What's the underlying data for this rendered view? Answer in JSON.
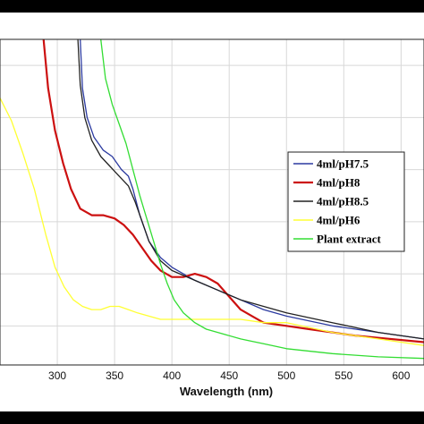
{
  "chart_data": {
    "type": "line",
    "title": "",
    "xlabel": "Wavelength (nm)",
    "ylabel": "",
    "xlim": [
      250,
      620
    ],
    "ylim": [
      0,
      1
    ],
    "x_ticks": [
      300,
      350,
      400,
      450,
      500,
      550,
      600
    ],
    "grid": true,
    "legend_position": "right",
    "series": [
      {
        "name": "4ml/pH7.5",
        "color": "#2b3aa0",
        "x": [
          320,
          322,
          326,
          332,
          340,
          348,
          356,
          362,
          366,
          372,
          380,
          390,
          400,
          420,
          440,
          460,
          480,
          500,
          540,
          580,
          620
        ],
        "y": [
          1.0,
          0.85,
          0.76,
          0.7,
          0.66,
          0.64,
          0.6,
          0.58,
          0.54,
          0.46,
          0.38,
          0.33,
          0.3,
          0.26,
          0.23,
          0.2,
          0.17,
          0.15,
          0.12,
          0.1,
          0.08
        ]
      },
      {
        "name": "4ml/pH8",
        "color": "#cc1010",
        "x": [
          288,
          292,
          298,
          305,
          312,
          320,
          330,
          340,
          350,
          358,
          366,
          374,
          382,
          390,
          400,
          410,
          420,
          430,
          440,
          450,
          460,
          470,
          480,
          500,
          520,
          560,
          620
        ],
        "y": [
          1.0,
          0.85,
          0.72,
          0.62,
          0.54,
          0.48,
          0.46,
          0.46,
          0.45,
          0.43,
          0.4,
          0.36,
          0.32,
          0.29,
          0.27,
          0.27,
          0.28,
          0.27,
          0.25,
          0.21,
          0.17,
          0.15,
          0.13,
          0.12,
          0.11,
          0.09,
          0.07
        ]
      },
      {
        "name": "4ml/pH8.5",
        "color": "#222222",
        "x": [
          318,
          320,
          324,
          330,
          338,
          346,
          354,
          362,
          368,
          374,
          380,
          390,
          400,
          420,
          440,
          460,
          480,
          500,
          540,
          580,
          620
        ],
        "y": [
          1.0,
          0.86,
          0.76,
          0.69,
          0.64,
          0.61,
          0.58,
          0.55,
          0.5,
          0.44,
          0.38,
          0.32,
          0.29,
          0.26,
          0.23,
          0.2,
          0.18,
          0.16,
          0.13,
          0.1,
          0.08
        ]
      },
      {
        "name": "4ml/pH6",
        "color": "#ffff33",
        "x": [
          250,
          260,
          270,
          280,
          290,
          298,
          306,
          314,
          322,
          330,
          338,
          346,
          354,
          362,
          370,
          380,
          390,
          400,
          420,
          440,
          460,
          480,
          500,
          540,
          580,
          620
        ],
        "y": [
          0.82,
          0.75,
          0.65,
          0.54,
          0.4,
          0.3,
          0.24,
          0.2,
          0.18,
          0.17,
          0.17,
          0.18,
          0.18,
          0.17,
          0.16,
          0.15,
          0.14,
          0.14,
          0.14,
          0.14,
          0.14,
          0.13,
          0.13,
          0.1,
          0.08,
          0.06
        ]
      },
      {
        "name": "Plant extract",
        "color": "#33dd33",
        "x": [
          338,
          342,
          348,
          354,
          360,
          366,
          372,
          378,
          384,
          390,
          396,
          402,
          410,
          420,
          430,
          440,
          460,
          480,
          500,
          540,
          580,
          620
        ],
        "y": [
          1.0,
          0.88,
          0.8,
          0.74,
          0.68,
          0.6,
          0.52,
          0.45,
          0.38,
          0.31,
          0.25,
          0.2,
          0.16,
          0.13,
          0.11,
          0.1,
          0.08,
          0.065,
          0.05,
          0.035,
          0.025,
          0.02
        ]
      }
    ]
  }
}
